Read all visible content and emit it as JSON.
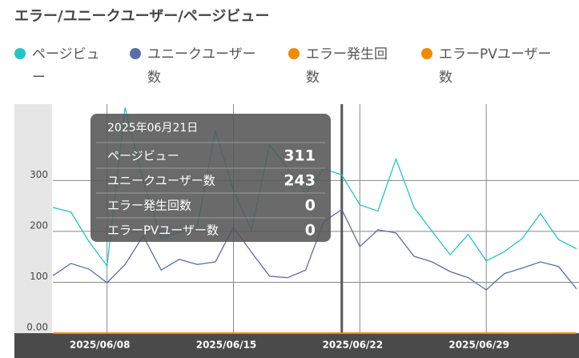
{
  "chart_data": {
    "type": "line",
    "title": "エラー/ユニークユーザー/ページビュー",
    "categories": [
      null,
      null,
      null,
      "2025/06/08",
      null,
      null,
      null,
      null,
      null,
      null,
      "2025/06/15",
      null,
      null,
      null,
      null,
      null,
      null,
      "2025/06/22",
      null,
      null,
      null,
      null,
      null,
      null,
      "2025/06/29",
      null,
      null,
      null,
      null,
      null
    ],
    "series": [
      {
        "name": "ページビュー",
        "color": "#22c5c5",
        "values": [
          247,
          238,
          180,
          132,
          443,
          300,
          187,
          198,
          210,
          398,
          280,
          203,
          370,
          324,
          274,
          323,
          311,
          252,
          240,
          342,
          247,
          200,
          154,
          194,
          142,
          160,
          186,
          235,
          184,
          166
        ]
      },
      {
        "name": "ユニークユーザー数",
        "color": "#5a6ea6",
        "values": [
          113,
          137,
          126,
          99,
          135,
          191,
          124,
          145,
          135,
          140,
          208,
          159,
          112,
          109,
          124,
          219,
          243,
          170,
          203,
          197,
          151,
          140,
          121,
          109,
          85,
          117,
          128,
          140,
          131,
          87
        ]
      },
      {
        "name": "エラー発生回数",
        "color": "#f28a00",
        "values": [
          0,
          0,
          0,
          0,
          0,
          0,
          0,
          0,
          0,
          0,
          0,
          0,
          0,
          0,
          0,
          0,
          0,
          0,
          0,
          0,
          0,
          0,
          0,
          0,
          0,
          0,
          0,
          0,
          0,
          0
        ]
      },
      {
        "name": "エラーPVユーザー数",
        "color": "#f28a00",
        "values": [
          0,
          0,
          0,
          0,
          0,
          0,
          0,
          0,
          0,
          0,
          0,
          0,
          0,
          0,
          0,
          0,
          0,
          0,
          0,
          0,
          0,
          0,
          0,
          0,
          0,
          0,
          0,
          0,
          0,
          0
        ]
      }
    ],
    "ylim": [
      0,
      450
    ],
    "yticks": [
      {
        "value": 0,
        "label": "0.00"
      },
      100,
      200,
      300
    ],
    "grid": true,
    "tooltip": {
      "title": "2025年06月21日",
      "index": 16
    }
  }
}
